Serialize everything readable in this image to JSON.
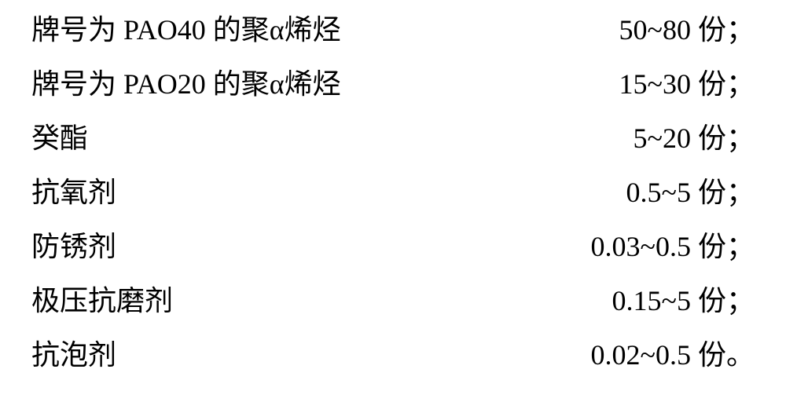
{
  "font": {
    "family_cjk": "Songti SC / SimSun (serif)",
    "family_latin": "Times New Roman",
    "size_pt": 27,
    "color": "#000000",
    "background": "#ffffff"
  },
  "rows": [
    {
      "label": "牌号为 PAO40 的聚α烯烃",
      "value": "50~80 份；"
    },
    {
      "label": "牌号为 PAO20 的聚α烯烃",
      "value": "15~30 份；"
    },
    {
      "label": "癸酯",
      "value": "5~20 份；"
    },
    {
      "label": "抗氧剂",
      "value": "0.5~5 份；"
    },
    {
      "label": "防锈剂",
      "value": "0.03~0.5 份；"
    },
    {
      "label": "极压抗磨剂",
      "value": "0.15~5 份；"
    },
    {
      "label": "抗泡剂",
      "value": "0.02~0.5 份。"
    }
  ]
}
